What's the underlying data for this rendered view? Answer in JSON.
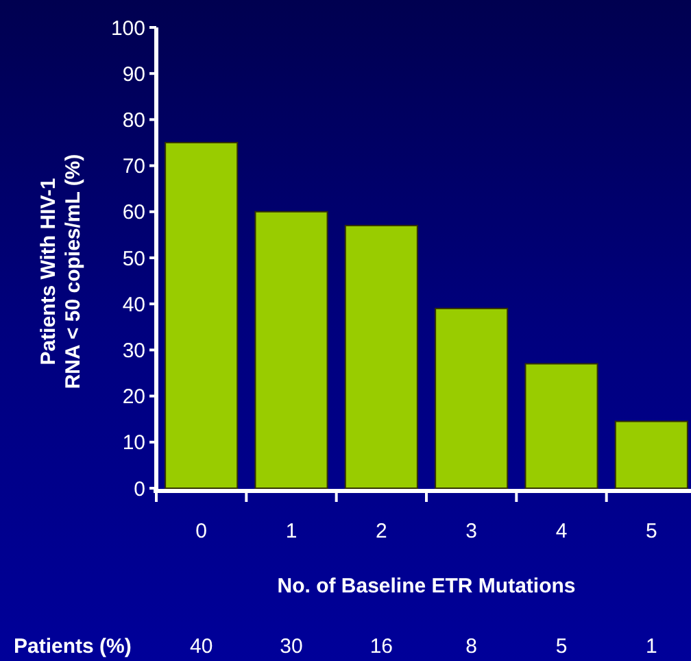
{
  "chart_data": {
    "type": "bar",
    "xlabel": "No. of Baseline ETR Mutations",
    "ylabel": "Patients With HIV-1\nRNA < 50 copies/mL (%)",
    "categories": [
      "0",
      "1",
      "2",
      "3",
      "4",
      "5"
    ],
    "values": [
      75,
      60,
      57,
      39,
      27,
      14.5
    ],
    "color": "#99cc00",
    "ylim": [
      0,
      100
    ],
    "yticks": [
      0,
      10,
      20,
      30,
      40,
      50,
      60,
      70,
      80,
      90,
      100
    ],
    "grid": false,
    "annotations": [
      "Patients (%)",
      "40",
      "30",
      "16",
      "8",
      "5",
      "1"
    ]
  }
}
